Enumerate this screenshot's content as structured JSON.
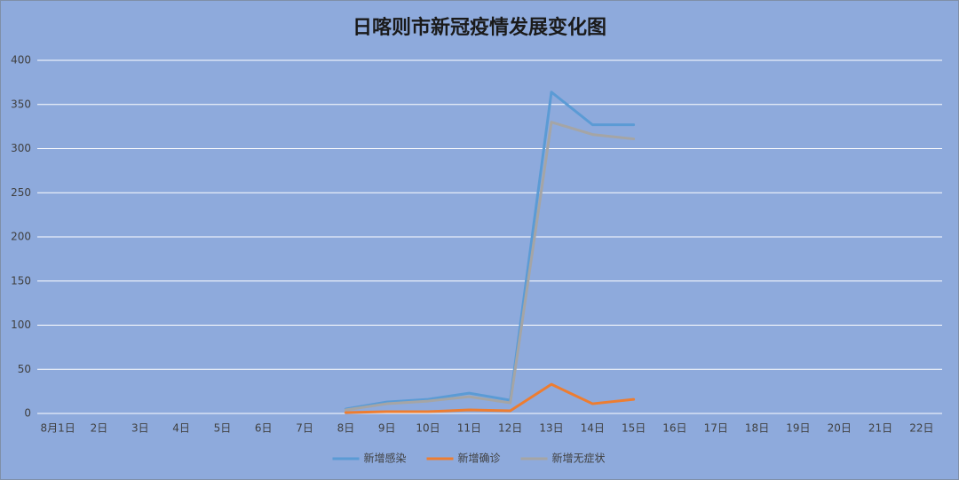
{
  "chart_data": {
    "type": "line",
    "title": "日喀则市新冠疫情发展变化图",
    "categories": [
      "8月1日",
      "2日",
      "3日",
      "4日",
      "5日",
      "6日",
      "7日",
      "8日",
      "9日",
      "10日",
      "11日",
      "12日",
      "13日",
      "14日",
      "15日",
      "16日",
      "17日",
      "18日",
      "19日",
      "20日",
      "21日",
      "22日"
    ],
    "series": [
      {
        "name": "新增感染",
        "color": "#5b9bd5",
        "values": [
          null,
          null,
          null,
          null,
          null,
          null,
          null,
          5,
          13,
          16,
          23,
          15,
          364,
          327,
          327,
          null,
          null,
          null,
          null,
          null,
          null,
          null
        ]
      },
      {
        "name": "新增确诊",
        "color": "#ed7d31",
        "values": [
          null,
          null,
          null,
          null,
          null,
          null,
          null,
          1,
          2,
          2,
          4,
          3,
          33,
          11,
          16,
          null,
          null,
          null,
          null,
          null,
          null,
          null
        ]
      },
      {
        "name": "新增无症状",
        "color": "#a5a5a5",
        "values": [
          null,
          null,
          null,
          null,
          null,
          null,
          null,
          4,
          11,
          14,
          19,
          12,
          330,
          316,
          311,
          null,
          null,
          null,
          null,
          null,
          null,
          null
        ]
      }
    ],
    "ylim": [
      0,
      400
    ],
    "yticks": [
      0,
      50,
      100,
      150,
      200,
      250,
      300,
      350,
      400
    ],
    "grid": true,
    "legend": "bottom"
  }
}
